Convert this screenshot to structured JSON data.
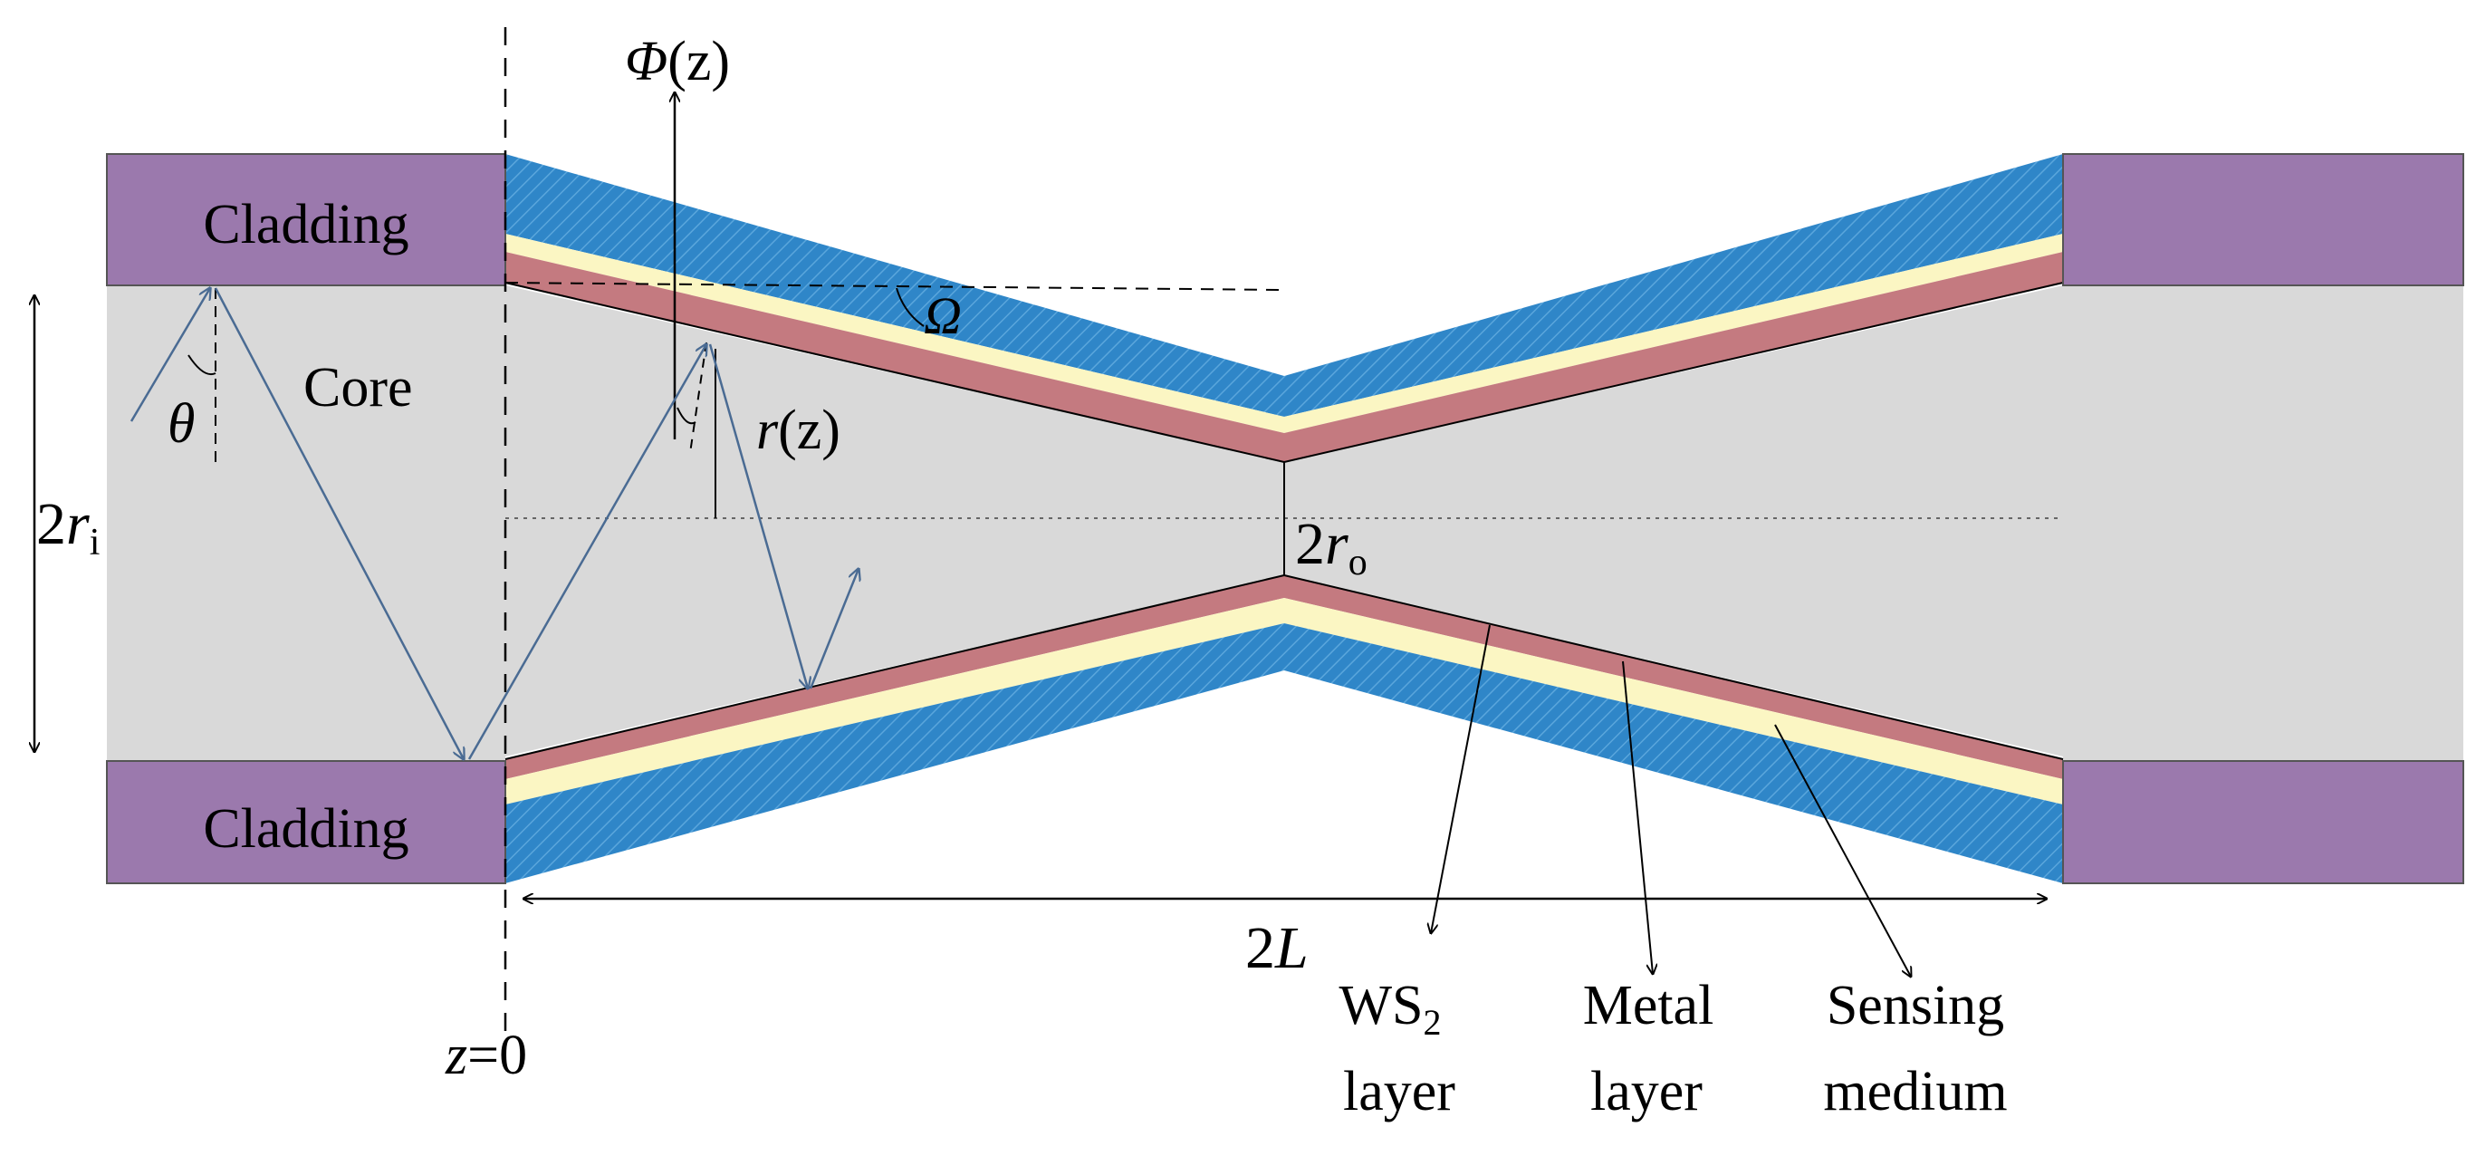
{
  "labels": {
    "cladding_top": "Cladding",
    "cladding_bottom": "Cladding",
    "core": "Core",
    "theta": "θ",
    "omega": "Ω",
    "phi": {
      "main": "Φ",
      "arg": "(z)"
    },
    "r_of_z": {
      "main": "r",
      "arg": "(z)"
    },
    "two_ri": {
      "coef": "2",
      "var": "r",
      "sub": "i"
    },
    "two_ro": {
      "coef": "2",
      "var": "r",
      "sub": "o"
    },
    "two_L": {
      "coef": "2",
      "var": "L"
    },
    "z_zero": {
      "var": "z",
      "rest": "=0"
    },
    "ws2_layer": {
      "line1": "WS",
      "sub": "2",
      "line2": "layer"
    },
    "metal_layer": {
      "line1": "Metal",
      "line2": "layer"
    },
    "sensing_medium": {
      "line1": "Sensing",
      "line2": "medium"
    }
  },
  "colors": {
    "cladding": "#9b79ad",
    "core": "#d9d9d9",
    "sensing": "#2f86c8",
    "metal": "#fbf6c3",
    "ws2": "#c47a80",
    "ray": "#4a6b93",
    "line": "#000000"
  }
}
